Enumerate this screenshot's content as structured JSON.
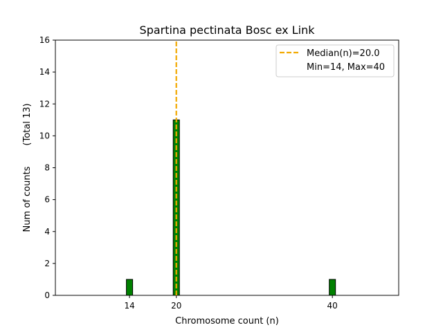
{
  "chart_data": {
    "type": "bar",
    "title": "Spartina pectinata Bosc ex Link",
    "xlabel": "Chromosome count (n)",
    "ylabel": "Num of counts",
    "ylabel_total": "(Total 13)",
    "xlim": [
      4.5,
      48.5
    ],
    "ylim": [
      0,
      16
    ],
    "x_ticks": [
      14,
      20,
      40
    ],
    "y_ticks": [
      0,
      2,
      4,
      6,
      8,
      10,
      12,
      14,
      16
    ],
    "bars": [
      {
        "x": 14,
        "value": 1
      },
      {
        "x": 20,
        "value": 11
      },
      {
        "x": 40,
        "value": 1
      }
    ],
    "median_line": {
      "x": 20.0,
      "label": "Median(n)=20.0",
      "color": "#f2a900",
      "style": "dashed"
    },
    "legend": {
      "position": "top-right",
      "entries": [
        "Median(n)=20.0",
        "Min=14, Max=40"
      ]
    },
    "colors": {
      "bar_fill": "#008000",
      "bar_edge": "#000000",
      "median": "#f2a900"
    },
    "grid": false
  }
}
